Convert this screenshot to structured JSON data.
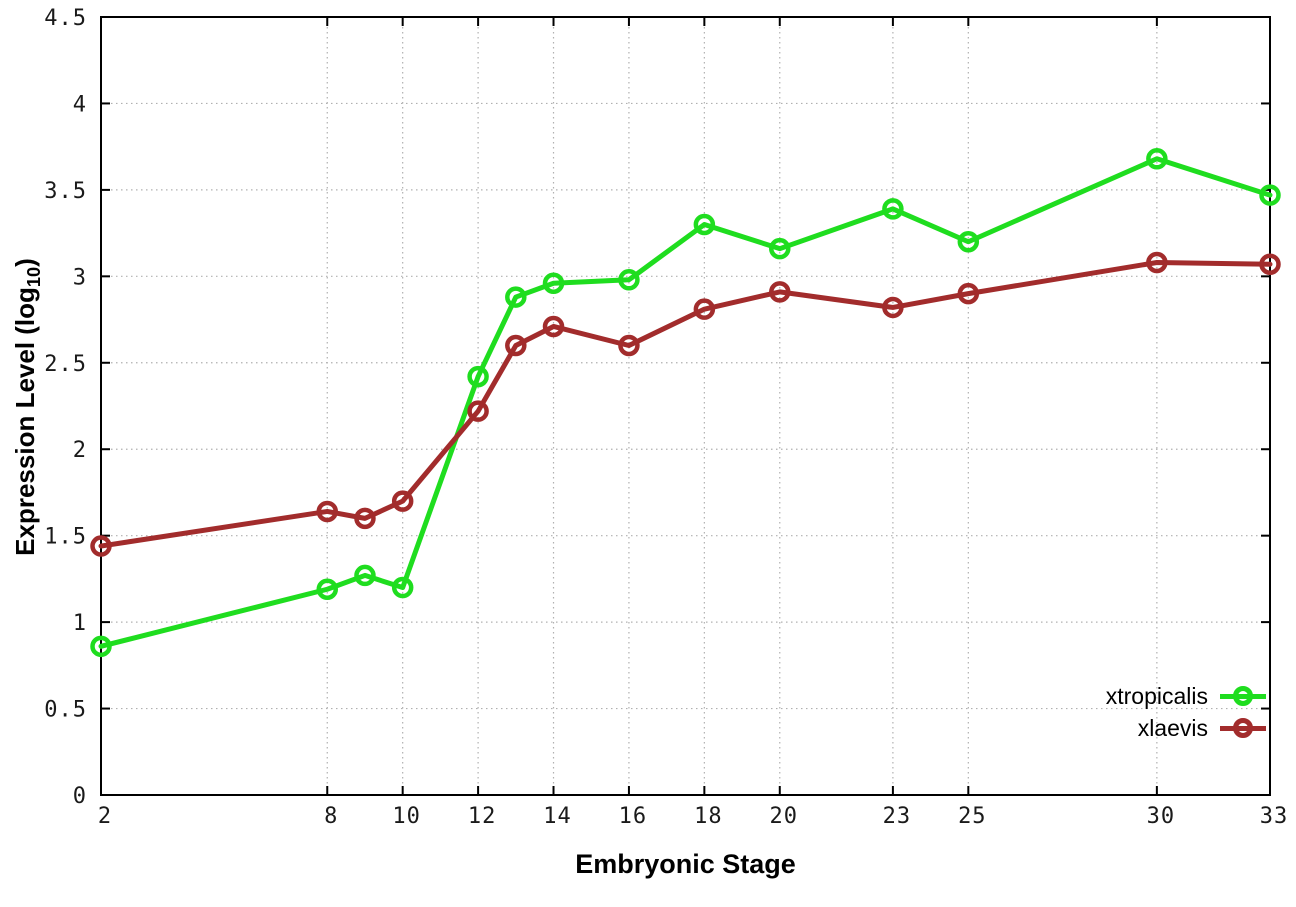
{
  "chart_data": {
    "type": "line",
    "title": "",
    "xlabel": "Embryonic Stage",
    "ylabel": "Expression Level (log10)",
    "ylabel_parts": {
      "pre": "Expression Level (log",
      "sub": "10",
      "post": ")"
    },
    "x": [
      2,
      8,
      9,
      10,
      12,
      13,
      14,
      16,
      18,
      20,
      23,
      25,
      30,
      33
    ],
    "series": [
      {
        "name": "xtropicalis",
        "color": "#1fdd1f",
        "marker": "open-circle",
        "values": [
          0.86,
          1.19,
          1.27,
          1.2,
          2.42,
          2.88,
          2.96,
          2.98,
          3.3,
          3.16,
          3.39,
          3.2,
          3.68,
          3.47
        ]
      },
      {
        "name": "xlaevis",
        "color": "#a22c2c",
        "marker": "open-circle",
        "values": [
          1.44,
          1.64,
          1.6,
          1.7,
          2.22,
          2.6,
          2.71,
          2.6,
          2.81,
          2.91,
          2.82,
          2.9,
          3.08,
          3.07
        ]
      }
    ],
    "xlim": [
      2,
      33
    ],
    "ylim": [
      0,
      4.5
    ],
    "xticks": [
      2,
      8,
      10,
      12,
      14,
      16,
      18,
      20,
      23,
      25,
      30,
      33
    ],
    "yticks": [
      0,
      0.5,
      1,
      1.5,
      2,
      2.5,
      3,
      3.5,
      4,
      4.5
    ],
    "grid": true,
    "grid_style": "dotted",
    "grid_color": "#b0b0b0",
    "axis_color": "#000000",
    "tick_label_color": "#1a1a1a",
    "legend_position": "inside-bottom-right",
    "legend_entries": [
      "xtropicalis",
      "xlaevis"
    ]
  }
}
